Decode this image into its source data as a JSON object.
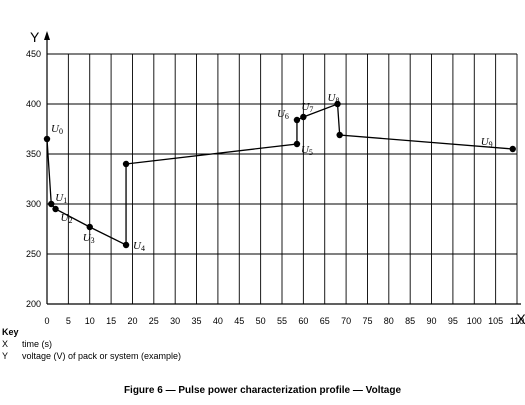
{
  "chart_data": {
    "type": "line",
    "x_axis_symbol": "X",
    "y_axis_symbol": "Y",
    "xlim": [
      0,
      110
    ],
    "ylim": [
      200,
      450
    ],
    "x_ticks": [
      0,
      5,
      10,
      15,
      20,
      25,
      30,
      35,
      40,
      45,
      50,
      55,
      60,
      65,
      70,
      75,
      80,
      85,
      90,
      95,
      100,
      105,
      110
    ],
    "y_ticks": [
      200,
      250,
      300,
      350,
      400,
      450
    ],
    "grid": true,
    "points": [
      {
        "x": 0,
        "y": 365,
        "label": "U",
        "sub": "0"
      },
      {
        "x": 1,
        "y": 300,
        "label": "U",
        "sub": "1"
      },
      {
        "x": 2,
        "y": 295,
        "label": "U",
        "sub": "2"
      },
      {
        "x": 10,
        "y": 277,
        "label": "U",
        "sub": "3"
      },
      {
        "x": 18.5,
        "y": 259,
        "label": "U",
        "sub": "4"
      },
      {
        "x": 18.5,
        "y": 340,
        "label": "",
        "sub": ""
      },
      {
        "x": 58.5,
        "y": 360,
        "label": "U",
        "sub": "5"
      },
      {
        "x": 58.5,
        "y": 384,
        "label": "U",
        "sub": "6"
      },
      {
        "x": 60,
        "y": 387,
        "label": "U",
        "sub": "7"
      },
      {
        "x": 68,
        "y": 400,
        "label": "U",
        "sub": "8"
      },
      {
        "x": 68.5,
        "y": 369,
        "label": "",
        "sub": ""
      },
      {
        "x": 109,
        "y": 355,
        "label": "U",
        "sub": "9"
      }
    ]
  },
  "key": {
    "title": "Key",
    "items": [
      {
        "symbol": "X",
        "text": "time (s)"
      },
      {
        "symbol": "Y",
        "text": "voltage (V) of pack or system (example)"
      }
    ]
  },
  "caption": "Figure 6 — Pulse power characterization profile — Voltage"
}
